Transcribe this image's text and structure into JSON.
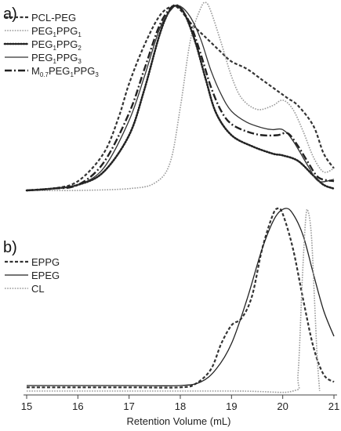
{
  "chart_data": [
    {
      "type": "line",
      "panel_label": "a)",
      "xlim": [
        15,
        21
      ],
      "grid": false,
      "legend_placement": "top-left",
      "series": [
        {
          "name": "PCL-PEG",
          "name_parts": [
            {
              "t": "PCL-PEG"
            }
          ],
          "style": "dash",
          "color": "#333333",
          "points": [
            [
              15.0,
              0.0
            ],
            [
              15.5,
              0.01
            ],
            [
              16.0,
              0.05
            ],
            [
              16.5,
              0.2
            ],
            [
              16.8,
              0.4
            ],
            [
              17.0,
              0.58
            ],
            [
              17.3,
              0.79
            ],
            [
              17.6,
              0.95
            ],
            [
              17.85,
              1.0
            ],
            [
              18.0,
              0.98
            ],
            [
              18.2,
              0.91
            ],
            [
              18.5,
              0.83
            ],
            [
              18.8,
              0.75
            ],
            [
              19.0,
              0.7
            ],
            [
              19.3,
              0.66
            ],
            [
              19.6,
              0.6
            ],
            [
              19.9,
              0.54
            ],
            [
              20.1,
              0.5
            ],
            [
              20.3,
              0.46
            ],
            [
              20.6,
              0.35
            ],
            [
              20.8,
              0.2
            ],
            [
              21.0,
              0.12
            ]
          ]
        },
        {
          "name": "PEG1PPG1",
          "name_parts": [
            {
              "t": "PEG"
            },
            {
              "t": "1",
              "sub": true
            },
            {
              "t": "PPG"
            },
            {
              "t": "1",
              "sub": true
            }
          ],
          "style": "cross",
          "color": "#9a9a9a",
          "points": [
            [
              15.0,
              0.0
            ],
            [
              16.0,
              0.0
            ],
            [
              17.0,
              0.01
            ],
            [
              17.5,
              0.04
            ],
            [
              17.8,
              0.15
            ],
            [
              18.0,
              0.45
            ],
            [
              18.2,
              0.82
            ],
            [
              18.4,
              0.99
            ],
            [
              18.5,
              1.02
            ],
            [
              18.6,
              0.97
            ],
            [
              18.8,
              0.8
            ],
            [
              19.0,
              0.62
            ],
            [
              19.2,
              0.5
            ],
            [
              19.5,
              0.44
            ],
            [
              19.8,
              0.46
            ],
            [
              20.0,
              0.49
            ],
            [
              20.2,
              0.44
            ],
            [
              20.4,
              0.32
            ],
            [
              20.6,
              0.18
            ],
            [
              20.8,
              0.1
            ],
            [
              21.0,
              0.12
            ]
          ]
        },
        {
          "name": "PEG1PPG2",
          "name_parts": [
            {
              "t": "PEG"
            },
            {
              "t": "1",
              "sub": true
            },
            {
              "t": "PPG"
            },
            {
              "t": "2",
              "sub": true
            }
          ],
          "style": "dot",
          "color": "#222222",
          "points": [
            [
              15.0,
              0.0
            ],
            [
              15.5,
              0.01
            ],
            [
              16.0,
              0.03
            ],
            [
              16.5,
              0.1
            ],
            [
              17.0,
              0.3
            ],
            [
              17.3,
              0.55
            ],
            [
              17.6,
              0.85
            ],
            [
              17.8,
              0.98
            ],
            [
              17.95,
              1.0
            ],
            [
              18.1,
              0.95
            ],
            [
              18.3,
              0.8
            ],
            [
              18.5,
              0.6
            ],
            [
              18.7,
              0.42
            ],
            [
              19.0,
              0.3
            ],
            [
              19.4,
              0.24
            ],
            [
              19.8,
              0.2
            ],
            [
              20.0,
              0.19
            ],
            [
              20.3,
              0.16
            ],
            [
              20.6,
              0.08
            ],
            [
              20.8,
              0.03
            ],
            [
              21.0,
              0.01
            ]
          ]
        },
        {
          "name": "PEG1PPG3",
          "name_parts": [
            {
              "t": "PEG"
            },
            {
              "t": "1",
              "sub": true
            },
            {
              "t": "PPG"
            },
            {
              "t": "3",
              "sub": true
            }
          ],
          "style": "solid",
          "color": "#333333",
          "points": [
            [
              15.0,
              0.0
            ],
            [
              15.5,
              0.01
            ],
            [
              16.0,
              0.03
            ],
            [
              16.5,
              0.12
            ],
            [
              17.0,
              0.38
            ],
            [
              17.3,
              0.62
            ],
            [
              17.6,
              0.88
            ],
            [
              17.85,
              0.99
            ],
            [
              18.0,
              1.0
            ],
            [
              18.2,
              0.94
            ],
            [
              18.4,
              0.82
            ],
            [
              18.6,
              0.65
            ],
            [
              18.8,
              0.52
            ],
            [
              19.0,
              0.43
            ],
            [
              19.3,
              0.37
            ],
            [
              19.6,
              0.34
            ],
            [
              19.8,
              0.33
            ],
            [
              20.0,
              0.33
            ],
            [
              20.2,
              0.27
            ],
            [
              20.5,
              0.13
            ],
            [
              20.7,
              0.05
            ],
            [
              21.0,
              0.06
            ]
          ]
        },
        {
          "name": "M0.7PEG1PPG3",
          "name_parts": [
            {
              "t": "M"
            },
            {
              "t": "0.7",
              "sub": true
            },
            {
              "t": "PEG"
            },
            {
              "t": "1",
              "sub": true
            },
            {
              "t": "PPG"
            },
            {
              "t": "3",
              "sub": true
            }
          ],
          "style": "dashdot",
          "color": "#222222",
          "points": [
            [
              15.0,
              0.0
            ],
            [
              15.5,
              0.01
            ],
            [
              16.0,
              0.03
            ],
            [
              16.5,
              0.15
            ],
            [
              17.0,
              0.42
            ],
            [
              17.3,
              0.66
            ],
            [
              17.6,
              0.9
            ],
            [
              17.85,
              1.0
            ],
            [
              18.0,
              0.99
            ],
            [
              18.2,
              0.9
            ],
            [
              18.4,
              0.74
            ],
            [
              18.6,
              0.56
            ],
            [
              18.8,
              0.43
            ],
            [
              19.0,
              0.36
            ],
            [
              19.3,
              0.32
            ],
            [
              19.6,
              0.3
            ],
            [
              19.9,
              0.3
            ],
            [
              20.1,
              0.31
            ],
            [
              20.3,
              0.24
            ],
            [
              20.5,
              0.15
            ],
            [
              20.7,
              0.07
            ],
            [
              21.0,
              0.05
            ]
          ]
        }
      ]
    },
    {
      "type": "line",
      "panel_label": "b)",
      "xlabel": "Retention Volume (mL)",
      "xlim": [
        15,
        21
      ],
      "xticks": [
        15,
        16,
        17,
        18,
        19,
        20,
        21
      ],
      "grid": false,
      "legend_placement": "top-left",
      "series": [
        {
          "name": "EPPG",
          "name_parts": [
            {
              "t": "EPPG"
            }
          ],
          "style": "dash",
          "color": "#333333",
          "points": [
            [
              15.0,
              0.02
            ],
            [
              17.0,
              0.02
            ],
            [
              18.0,
              0.02
            ],
            [
              18.3,
              0.04
            ],
            [
              18.6,
              0.12
            ],
            [
              18.8,
              0.26
            ],
            [
              19.0,
              0.36
            ],
            [
              19.2,
              0.4
            ],
            [
              19.4,
              0.52
            ],
            [
              19.6,
              0.78
            ],
            [
              19.8,
              0.96
            ],
            [
              19.9,
              1.0
            ],
            [
              20.0,
              0.97
            ],
            [
              20.2,
              0.78
            ],
            [
              20.4,
              0.5
            ],
            [
              20.6,
              0.24
            ],
            [
              20.8,
              0.09
            ],
            [
              21.0,
              0.05
            ]
          ]
        },
        {
          "name": "EPEG",
          "name_parts": [
            {
              "t": "EPEG"
            }
          ],
          "style": "solid",
          "color": "#222222",
          "points": [
            [
              15.0,
              0.03
            ],
            [
              17.0,
              0.03
            ],
            [
              18.0,
              0.03
            ],
            [
              18.4,
              0.05
            ],
            [
              18.7,
              0.12
            ],
            [
              19.0,
              0.26
            ],
            [
              19.3,
              0.5
            ],
            [
              19.6,
              0.78
            ],
            [
              19.85,
              0.95
            ],
            [
              20.05,
              1.0
            ],
            [
              20.2,
              0.97
            ],
            [
              20.4,
              0.85
            ],
            [
              20.6,
              0.64
            ],
            [
              20.8,
              0.44
            ],
            [
              21.0,
              0.3
            ]
          ]
        },
        {
          "name": "CL",
          "name_parts": [
            {
              "t": "CL"
            }
          ],
          "style": "cross",
          "color": "#9a9a9a",
          "points": [
            [
              15.0,
              0.0
            ],
            [
              19.0,
              0.0
            ],
            [
              20.2,
              0.0
            ],
            [
              20.3,
              0.1
            ],
            [
              20.38,
              0.6
            ],
            [
              20.45,
              0.95
            ],
            [
              20.5,
              0.98
            ],
            [
              20.56,
              0.85
            ],
            [
              20.62,
              0.5
            ],
            [
              20.67,
              0.2
            ],
            [
              20.72,
              0.0
            ]
          ]
        }
      ]
    }
  ]
}
